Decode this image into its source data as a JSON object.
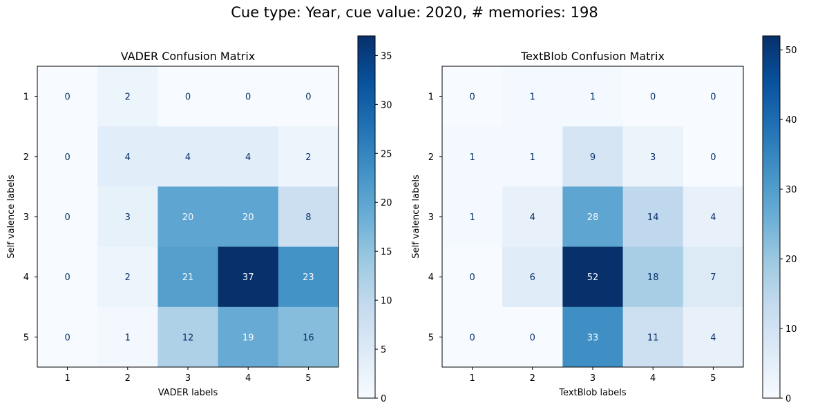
{
  "suptitle": "Cue type: Year, cue value: 2020, # memories: 198",
  "chart_data": [
    {
      "type": "heatmap",
      "title": "VADER Confusion Matrix",
      "xlabel": "VADER labels",
      "ylabel": "Self valence labels",
      "x_categories": [
        "1",
        "2",
        "3",
        "4",
        "5"
      ],
      "y_categories": [
        "1",
        "2",
        "3",
        "4",
        "5"
      ],
      "values": [
        [
          0,
          2,
          0,
          0,
          0
        ],
        [
          0,
          4,
          4,
          4,
          2
        ],
        [
          0,
          3,
          20,
          20,
          8
        ],
        [
          0,
          2,
          21,
          37,
          23
        ],
        [
          0,
          1,
          12,
          19,
          16
        ]
      ],
      "colormap": "Blues",
      "colorbar": {
        "min": 0,
        "max": 37,
        "ticks": [
          0,
          5,
          10,
          15,
          20,
          25,
          30,
          35
        ]
      }
    },
    {
      "type": "heatmap",
      "title": "TextBlob Confusion Matrix",
      "xlabel": "TextBlob labels",
      "ylabel": "Self valence labels",
      "x_categories": [
        "1",
        "2",
        "3",
        "4",
        "5"
      ],
      "y_categories": [
        "1",
        "2",
        "3",
        "4",
        "5"
      ],
      "values": [
        [
          0,
          1,
          1,
          0,
          0
        ],
        [
          1,
          1,
          9,
          3,
          0
        ],
        [
          1,
          4,
          28,
          14,
          4
        ],
        [
          0,
          6,
          52,
          18,
          7
        ],
        [
          0,
          0,
          33,
          11,
          4
        ]
      ],
      "colormap": "Blues",
      "colorbar": {
        "min": 0,
        "max": 52,
        "ticks": [
          0,
          10,
          20,
          30,
          40,
          50
        ]
      }
    }
  ]
}
